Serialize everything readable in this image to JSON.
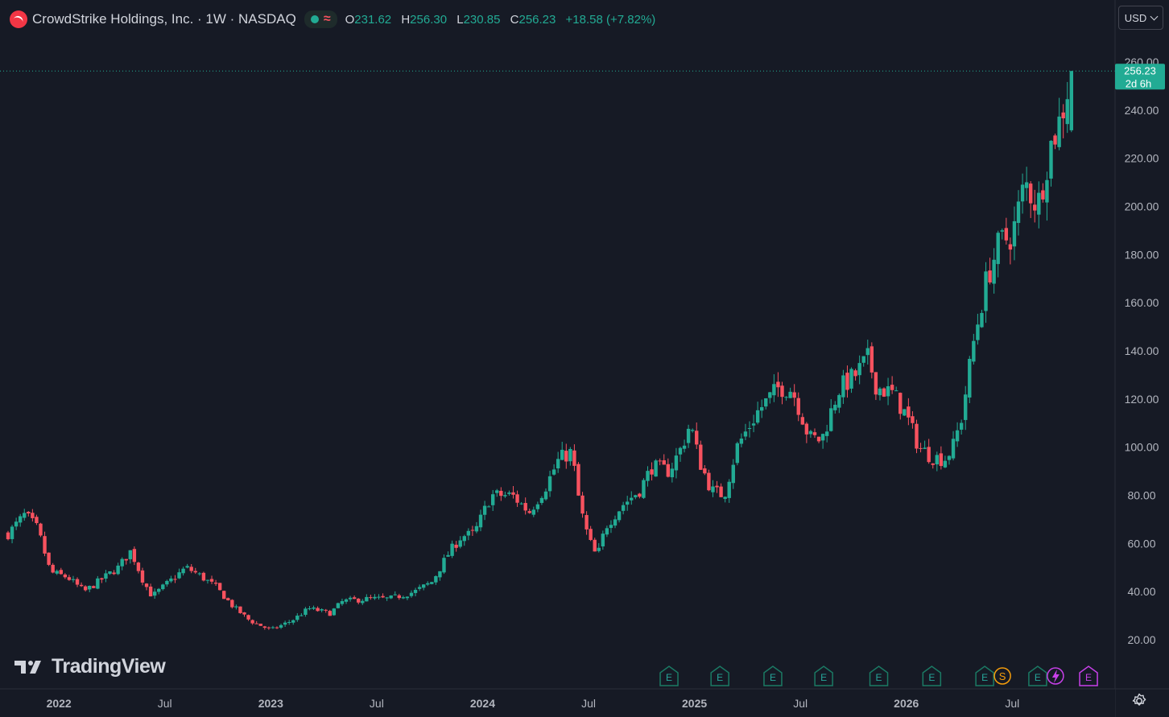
{
  "header": {
    "symbol_text": "CrowdStrike Holdings, Inc. · 1W · NASDAQ",
    "status_icon": "market-open-dot",
    "wave_glyph": "≈",
    "o_label": "O",
    "o_value": "231.62",
    "h_label": "H",
    "h_value": "256.30",
    "l_label": "L",
    "l_value": "230.85",
    "c_label": "C",
    "c_value": "256.23",
    "change": "+18.58 (+7.82%)"
  },
  "currency_button": {
    "label": "USD"
  },
  "brand": {
    "text": "TradingView"
  },
  "price_tag": {
    "price": "256.23",
    "countdown": "2d 6h"
  },
  "colors": {
    "up": "#22ab94",
    "down": "#f7525f",
    "background": "#161a25",
    "axis_text": "#b2b5be",
    "earnings": "#1b7a64"
  },
  "chart_data": {
    "type": "candlestick",
    "interval": "1W",
    "y_ticks": [
      "260.00",
      "240.00",
      "220.00",
      "200.00",
      "180.00",
      "160.00",
      "140.00",
      "120.00",
      "100.00",
      "80.00",
      "60.00",
      "40.00",
      "20.00"
    ],
    "ylim": [
      8,
      270
    ],
    "x_range": [
      2021.76,
      2026.78
    ],
    "x_ticks": [
      {
        "label": "2022",
        "t": 2022.0,
        "major": true
      },
      {
        "label": "Jul",
        "t": 2022.5,
        "major": false
      },
      {
        "label": "2023",
        "t": 2023.0,
        "major": true
      },
      {
        "label": "Jul",
        "t": 2023.5,
        "major": false
      },
      {
        "label": "2024",
        "t": 2024.0,
        "major": true
      },
      {
        "label": "Jul",
        "t": 2024.5,
        "major": false
      },
      {
        "label": "2025",
        "t": 2025.0,
        "major": true
      },
      {
        "label": "Jul",
        "t": 2025.5,
        "major": false
      },
      {
        "label": "2026",
        "t": 2026.0,
        "major": true
      },
      {
        "label": "Jul",
        "t": 2026.5,
        "major": false
      }
    ],
    "last_price": 256.23,
    "waypoints": [
      [
        2021.76,
        64
      ],
      [
        2021.84,
        72
      ],
      [
        2021.9,
        66
      ],
      [
        2021.96,
        48
      ],
      [
        2022.04,
        46
      ],
      [
        2022.12,
        40
      ],
      [
        2022.2,
        45
      ],
      [
        2022.28,
        50
      ],
      [
        2022.34,
        57
      ],
      [
        2022.4,
        44
      ],
      [
        2022.44,
        38
      ],
      [
        2022.52,
        44
      ],
      [
        2022.6,
        50
      ],
      [
        2022.66,
        47
      ],
      [
        2022.74,
        42
      ],
      [
        2022.82,
        34
      ],
      [
        2022.9,
        28
      ],
      [
        2023.0,
        24
      ],
      [
        2023.1,
        28
      ],
      [
        2023.18,
        33
      ],
      [
        2023.28,
        31
      ],
      [
        2023.34,
        36
      ],
      [
        2023.46,
        37
      ],
      [
        2023.56,
        37
      ],
      [
        2023.68,
        40
      ],
      [
        2023.76,
        44
      ],
      [
        2023.84,
        56
      ],
      [
        2023.9,
        63
      ],
      [
        2023.96,
        64
      ],
      [
        2024.04,
        80
      ],
      [
        2024.14,
        80
      ],
      [
        2024.22,
        73
      ],
      [
        2024.3,
        84
      ],
      [
        2024.36,
        95
      ],
      [
        2024.42,
        98
      ],
      [
        2024.46,
        75
      ],
      [
        2024.5,
        62
      ],
      [
        2024.54,
        54
      ],
      [
        2024.58,
        67
      ],
      [
        2024.66,
        76
      ],
      [
        2024.74,
        82
      ],
      [
        2024.8,
        92
      ],
      [
        2024.88,
        90
      ],
      [
        2024.94,
        100
      ],
      [
        2024.98,
        110
      ],
      [
        2025.02,
        95
      ],
      [
        2025.08,
        82
      ],
      [
        2025.14,
        80
      ],
      [
        2025.2,
        100
      ],
      [
        2025.3,
        115
      ],
      [
        2025.4,
        125
      ],
      [
        2025.46,
        124
      ],
      [
        2025.5,
        115
      ],
      [
        2025.54,
        104
      ],
      [
        2025.6,
        103
      ],
      [
        2025.68,
        124
      ],
      [
        2025.76,
        130
      ],
      [
        2025.82,
        137
      ],
      [
        2025.86,
        125
      ],
      [
        2025.94,
        122
      ],
      [
        2026.0,
        113
      ],
      [
        2026.06,
        100
      ],
      [
        2026.12,
        96
      ],
      [
        2026.18,
        95
      ],
      [
        2026.22,
        100
      ],
      [
        2026.26,
        112
      ],
      [
        2026.32,
        145
      ],
      [
        2026.38,
        170
      ],
      [
        2026.44,
        185
      ],
      [
        2026.5,
        188
      ],
      [
        2026.56,
        210
      ],
      [
        2026.62,
        200
      ],
      [
        2026.68,
        225
      ],
      [
        2026.73,
        237
      ],
      [
        2026.78,
        256.23
      ]
    ],
    "earnings_markers": [
      {
        "t": 2024.88,
        "label": "E"
      },
      {
        "t": 2025.12,
        "label": "E"
      },
      {
        "t": 2025.37,
        "label": "E"
      },
      {
        "t": 2025.61,
        "label": "E"
      },
      {
        "t": 2025.87,
        "label": "E"
      },
      {
        "t": 2026.12,
        "label": "E"
      },
      {
        "t": 2026.37,
        "label": "E",
        "extra": "S"
      },
      {
        "t": 2026.62,
        "label": "E",
        "extra": "lightning"
      },
      {
        "t": 2026.86,
        "label": "E",
        "extra": "split"
      }
    ]
  }
}
